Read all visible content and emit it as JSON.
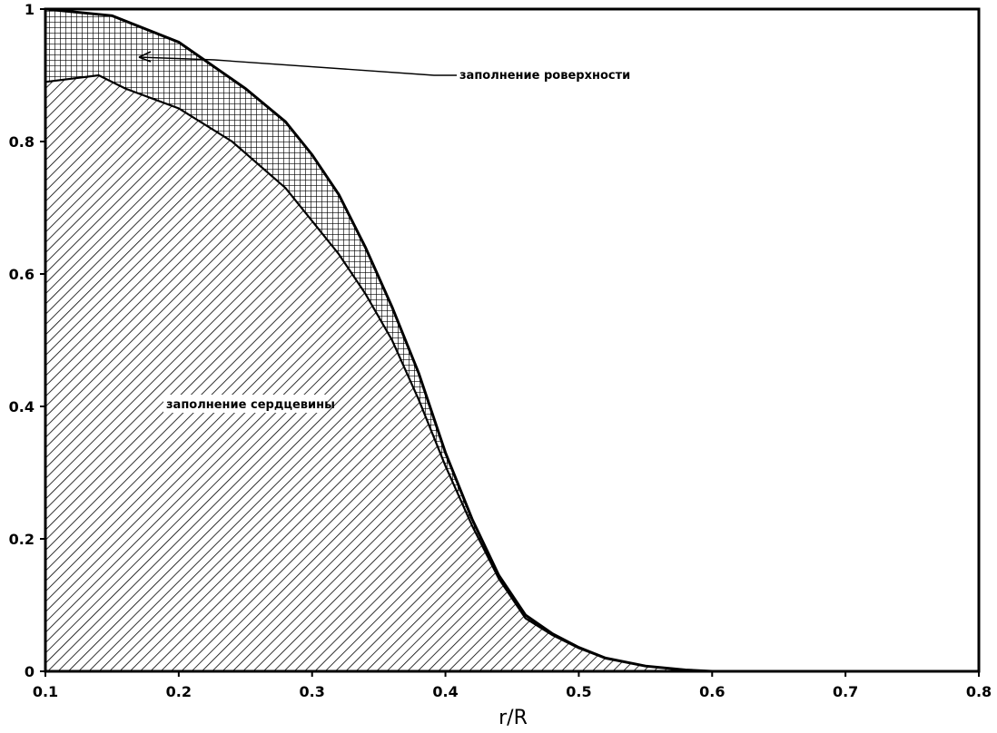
{
  "chart_data": {
    "type": "area",
    "xlabel": "r/R",
    "ylabel": "",
    "xlim": [
      0.1,
      0.8
    ],
    "ylim": [
      0,
      1
    ],
    "x_ticks": [
      0.1,
      0.2,
      0.3,
      0.4,
      0.5,
      0.6,
      0.7,
      0.8
    ],
    "x_tick_labels": [
      "0.1",
      "0.2",
      "0.3",
      "0.4",
      "0.5",
      "0.6",
      "0.7",
      "0.8"
    ],
    "y_ticks": [
      0,
      0.2,
      0.4,
      0.6,
      0.8,
      1
    ],
    "y_tick_labels": [
      "0",
      "0.2",
      "0.4",
      "0.6",
      "0.8",
      "1"
    ],
    "grid": false,
    "series": [
      {
        "name": "заполнение сердцевины",
        "fill": "diagonal-hatch",
        "x": [
          0.1,
          0.14,
          0.16,
          0.2,
          0.24,
          0.28,
          0.3,
          0.32,
          0.34,
          0.36,
          0.38,
          0.4,
          0.42,
          0.44,
          0.46,
          0.48,
          0.5,
          0.52,
          0.55,
          0.58,
          0.6,
          0.8
        ],
        "y": [
          0.89,
          0.9,
          0.88,
          0.85,
          0.8,
          0.73,
          0.68,
          0.63,
          0.57,
          0.5,
          0.41,
          0.31,
          0.22,
          0.14,
          0.08,
          0.055,
          0.035,
          0.02,
          0.008,
          0.002,
          0,
          0
        ]
      },
      {
        "name": "заполнение роверхности",
        "fill": "cross-hatch",
        "x": [
          0.1,
          0.15,
          0.2,
          0.25,
          0.28,
          0.3,
          0.32,
          0.34,
          0.36,
          0.38,
          0.4,
          0.42,
          0.44,
          0.46,
          0.48,
          0.5,
          0.52,
          0.55,
          0.58,
          0.6,
          0.8
        ],
        "y": [
          1.0,
          0.99,
          0.95,
          0.88,
          0.83,
          0.78,
          0.72,
          0.64,
          0.55,
          0.45,
          0.33,
          0.23,
          0.145,
          0.085,
          0.057,
          0.036,
          0.02,
          0.008,
          0.002,
          0,
          0
        ]
      }
    ],
    "annotations": [
      {
        "text": "заполнение роверхности",
        "target": "заполнение роверхности"
      },
      {
        "text": "заполнение сердцевины",
        "target": "заполнение сердцевины"
      }
    ]
  }
}
